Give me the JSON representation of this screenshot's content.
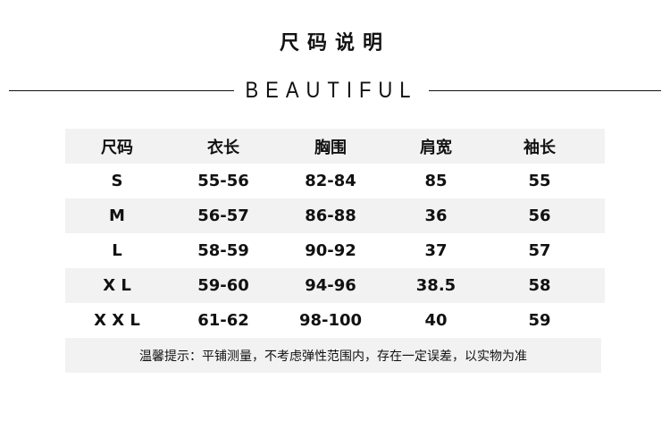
{
  "title": "尺码说明",
  "brand": "BEAUTIFUL",
  "table": {
    "headers": [
      "尺码",
      "衣长",
      "胸围",
      "肩宽",
      "袖长"
    ],
    "rows": [
      [
        "S",
        "55-56",
        "82-84",
        "85",
        "55"
      ],
      [
        "M",
        "56-57",
        "86-88",
        "36",
        "56"
      ],
      [
        "L",
        "58-59",
        "90-92",
        "37",
        "57"
      ],
      [
        "X L",
        "59-60",
        "94-96",
        "38.5",
        "58"
      ],
      [
        "X X L",
        "61-62",
        "98-100",
        "40",
        "59"
      ]
    ]
  },
  "note": "温馨提示：平铺测量，不考虑弹性范围内，存在一定误差，以实物为准"
}
